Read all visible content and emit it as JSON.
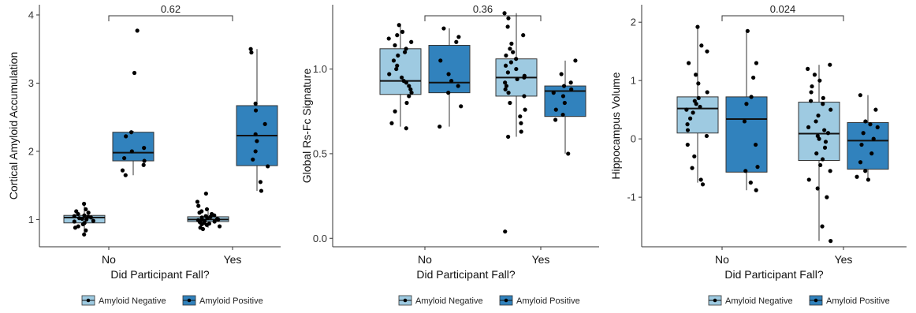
{
  "colors": {
    "negative": "#9ecae1",
    "positive": "#3182bd"
  },
  "chart_data": [
    {
      "type": "box",
      "xlabel": "Did Participant Fall?",
      "ylabel": "Cortical Amyloid Accumulation",
      "categories": [
        "No",
        "Yes"
      ],
      "ylim": [
        0.6,
        4.15
      ],
      "yticks": [
        1,
        2,
        3,
        4
      ],
      "yticklabels": [
        "1",
        "2",
        "3",
        "4"
      ],
      "pvalue": "0.62",
      "legend": [
        "Amyloid Negative",
        "Amyloid Positive"
      ],
      "legend_position": "bottom",
      "grid": false,
      "boxes": [
        {
          "category": "No",
          "group": "Amyloid Negative",
          "min": 0.8,
          "q1": 0.95,
          "median": 1.03,
          "q3": 1.06,
          "max": 1.2,
          "points": [
            0.78,
            0.84,
            0.88,
            0.9,
            0.93,
            0.95,
            0.97,
            0.98,
            1.0,
            1.01,
            1.02,
            1.03,
            1.04,
            1.05,
            1.06,
            1.08,
            1.1,
            1.12,
            1.15,
            1.23
          ]
        },
        {
          "category": "No",
          "group": "Amyloid Positive",
          "min": 1.65,
          "q1": 1.86,
          "median": 1.98,
          "q3": 2.28,
          "max": 2.3,
          "points": [
            1.65,
            1.72,
            1.8,
            1.86,
            1.9,
            2.0,
            2.05,
            2.22,
            2.28,
            3.15,
            3.77
          ]
        },
        {
          "category": "Yes",
          "group": "Amyloid Negative",
          "min": 0.88,
          "q1": 0.97,
          "median": 1.0,
          "q3": 1.04,
          "max": 1.12,
          "points": [
            0.86,
            0.88,
            0.9,
            0.92,
            0.93,
            0.94,
            0.95,
            0.96,
            0.97,
            0.97,
            0.98,
            0.99,
            1.0,
            1.0,
            1.01,
            1.02,
            1.03,
            1.04,
            1.05,
            1.06,
            1.08,
            1.1,
            1.12,
            1.15,
            1.2,
            1.26,
            1.38
          ]
        },
        {
          "category": "Yes",
          "group": "Amyloid Positive",
          "min": 1.42,
          "q1": 1.79,
          "median": 2.23,
          "q3": 2.67,
          "max": 3.5,
          "points": [
            1.42,
            1.55,
            1.78,
            1.88,
            2.0,
            2.15,
            2.25,
            2.4,
            2.6,
            2.7,
            3.45,
            3.5
          ]
        }
      ]
    },
    {
      "type": "box",
      "xlabel": "Did Participant Fall?",
      "ylabel": "Global Rs-Fc Signature",
      "categories": [
        "No",
        "Yes"
      ],
      "ylim": [
        -0.05,
        1.38
      ],
      "yticks": [
        0.0,
        0.5,
        1.0
      ],
      "yticklabels": [
        "0.0",
        "0.5",
        "1.0"
      ],
      "pvalue": "0.36",
      "legend": [
        "Amyloid Negative",
        "Amyloid Positive"
      ],
      "legend_position": "bottom",
      "grid": false,
      "boxes": [
        {
          "category": "No",
          "group": "Amyloid Negative",
          "min": 0.66,
          "q1": 0.85,
          "median": 0.93,
          "q3": 1.12,
          "max": 1.26,
          "points": [
            0.65,
            0.68,
            0.75,
            0.8,
            0.84,
            0.86,
            0.88,
            0.9,
            0.92,
            0.93,
            0.95,
            0.97,
            1.0,
            1.02,
            1.05,
            1.08,
            1.1,
            1.12,
            1.14,
            1.16,
            1.18,
            1.2,
            1.22,
            1.26
          ]
        },
        {
          "category": "No",
          "group": "Amyloid Positive",
          "min": 0.66,
          "q1": 0.86,
          "median": 0.92,
          "q3": 1.14,
          "max": 1.24,
          "points": [
            0.66,
            0.78,
            0.86,
            0.9,
            0.93,
            0.97,
            1.05,
            1.16,
            1.19,
            1.24
          ]
        },
        {
          "category": "Yes",
          "group": "Amyloid Negative",
          "min": 0.6,
          "q1": 0.84,
          "median": 0.95,
          "q3": 1.06,
          "max": 1.33,
          "points": [
            0.04,
            0.6,
            0.63,
            0.68,
            0.72,
            0.76,
            0.8,
            0.84,
            0.86,
            0.88,
            0.9,
            0.92,
            0.94,
            0.95,
            0.96,
            0.98,
            1.0,
            1.02,
            1.04,
            1.06,
            1.08,
            1.1,
            1.12,
            1.15,
            1.2,
            1.25,
            1.3,
            1.33
          ]
        },
        {
          "category": "Yes",
          "group": "Amyloid Positive",
          "min": 0.5,
          "q1": 0.72,
          "median": 0.87,
          "q3": 0.9,
          "max": 1.05,
          "points": [
            0.5,
            0.7,
            0.73,
            0.76,
            0.8,
            0.84,
            0.86,
            0.88,
            0.9,
            0.92,
            0.97,
            1.05
          ]
        }
      ]
    },
    {
      "type": "box",
      "xlabel": "Did Participant Fall?",
      "ylabel": "Hippocampus Volume",
      "categories": [
        "No",
        "Yes"
      ],
      "ylim": [
        -1.85,
        2.3
      ],
      "yticks": [
        -1,
        0,
        1,
        2
      ],
      "yticklabels": [
        "-1",
        "0",
        "1",
        "2"
      ],
      "pvalue": "0.024",
      "legend": [
        "Amyloid Negative",
        "Amyloid Positive"
      ],
      "legend_position": "bottom",
      "grid": false,
      "boxes": [
        {
          "category": "No",
          "group": "Amyloid Negative",
          "min": -0.75,
          "q1": 0.1,
          "median": 0.52,
          "q3": 0.72,
          "max": 1.92,
          "points": [
            -0.78,
            -0.7,
            -0.5,
            -0.3,
            -0.1,
            0.05,
            0.15,
            0.25,
            0.35,
            0.45,
            0.5,
            0.55,
            0.6,
            0.65,
            0.7,
            0.8,
            0.95,
            1.1,
            1.3,
            1.5,
            1.6,
            1.92
          ]
        },
        {
          "category": "No",
          "group": "Amyloid Positive",
          "min": -0.88,
          "q1": -0.57,
          "median": 0.34,
          "q3": 0.72,
          "max": 1.85,
          "points": [
            -0.88,
            -0.75,
            -0.55,
            -0.48,
            -0.1,
            0.3,
            0.6,
            0.72,
            1.05,
            1.3,
            1.85
          ]
        },
        {
          "category": "Yes",
          "group": "Amyloid Negative",
          "min": -1.75,
          "q1": -0.37,
          "median": 0.09,
          "q3": 0.63,
          "max": 1.27,
          "points": [
            -1.75,
            -1.5,
            -1.0,
            -0.85,
            -0.7,
            -0.55,
            -0.45,
            -0.35,
            -0.25,
            -0.15,
            -0.05,
            0.0,
            0.05,
            0.1,
            0.15,
            0.2,
            0.3,
            0.4,
            0.5,
            0.6,
            0.65,
            0.7,
            0.8,
            0.9,
            1.0,
            1.1,
            1.2,
            1.27
          ]
        },
        {
          "category": "Yes",
          "group": "Amyloid Positive",
          "min": -0.7,
          "q1": -0.52,
          "median": -0.03,
          "q3": 0.28,
          "max": 0.75,
          "points": [
            -0.7,
            -0.65,
            -0.55,
            -0.4,
            -0.25,
            -0.1,
            0.0,
            0.1,
            0.2,
            0.25,
            0.3,
            0.5,
            0.75
          ]
        }
      ]
    }
  ]
}
